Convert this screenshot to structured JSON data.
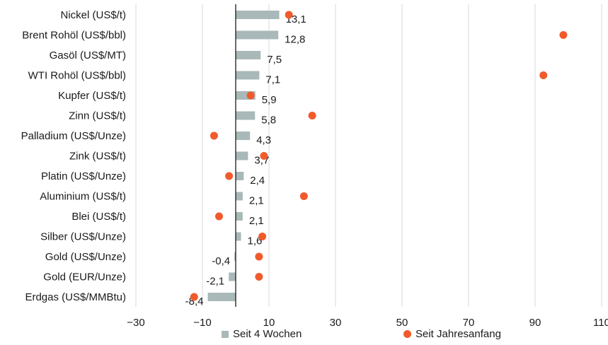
{
  "chart_data": {
    "type": "bar",
    "orientation": "horizontal",
    "categories": [
      "Nickel (US$/t)",
      "Brent Rohöl (US$/bbl)",
      "Gasöl (US$/MT)",
      "WTI Rohöl (US$/bbl)",
      "Kupfer (US$/t)",
      "Zinn (US$/t)",
      "Palladium (US$/Unze)",
      "Zink (US$/t)",
      "Platin (US$/Unze)",
      "Aluminium (US$/t)",
      "Blei (US$/t)",
      "Silber (US$/Unze)",
      "Gold (US$/Unze)",
      "Gold (EUR/Unze)",
      "Erdgas (US$/MMBtu)"
    ],
    "series": [
      {
        "name": "Seit 4 Wochen",
        "mark": "bar",
        "values": [
          13.1,
          12.8,
          7.5,
          7.1,
          5.9,
          5.8,
          4.3,
          3.7,
          2.4,
          2.1,
          2.1,
          1.6,
          -0.4,
          -2.1,
          -8.4
        ],
        "labels": [
          "13,1",
          "12,8",
          "7,5",
          "7,1",
          "5,9",
          "5,8",
          "4,3",
          "3,7",
          "2,4",
          "2,1",
          "2,1",
          "1,6",
          "-0,4",
          "-2,1",
          "-8,4"
        ]
      },
      {
        "name": "Seit Jahresanfang",
        "mark": "dot",
        "values": [
          16,
          98.5,
          null,
          92.5,
          4.5,
          23,
          -6.5,
          8.5,
          -2,
          20.5,
          -5,
          8,
          7,
          7,
          -12.5
        ]
      }
    ],
    "xlim": [
      -30,
      110
    ],
    "xticks": [
      -30,
      -10,
      10,
      30,
      50,
      70,
      90,
      110
    ],
    "grid": true,
    "legend": "bottom",
    "colors": {
      "bar": "#a9b8b8",
      "dot": "#f15a2b",
      "grid": "#d9d9d9",
      "axis": "#1a1a1a"
    }
  }
}
